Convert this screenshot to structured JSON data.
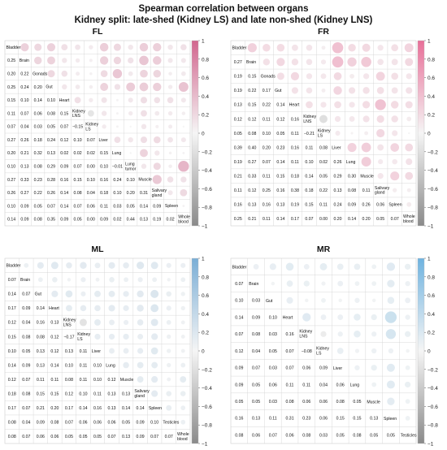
{
  "figure": {
    "title": "Spearman correlation between organs",
    "subtitle": "Kidney split: late-shed (Kidney LS) and late non-shed (Kidney LNS)"
  },
  "colorbar_ticks": [
    "1",
    "0.8",
    "0.6",
    "0.4",
    "0.2",
    "0",
    "−0.2",
    "−0.4",
    "−0.6",
    "−0.8",
    "−1"
  ],
  "colors": {
    "fl_high": "#d2668e",
    "fr_high": "#e86f98",
    "ml_high": "#7aaed6",
    "mr_high": "#6fb3e0",
    "mid": "#f5f5f5",
    "low": "#8a8a8a",
    "grid": "#cfcfcf"
  },
  "chart_data": [
    {
      "type": "heatmap",
      "title": "FL",
      "labels": [
        "Bladder",
        "Brain",
        "Gonads",
        "Gut",
        "Heart",
        "Kidney LNS",
        "Kidney LS",
        "Liver",
        "Lung",
        "Lung tumor",
        "Muscle",
        "Salivary gland",
        "Spleen",
        "Whole blood"
      ],
      "lower": [
        [],
        [
          0.25
        ],
        [
          0.2,
          0.22
        ],
        [
          0.25,
          0.24,
          0.2
        ],
        [
          0.15,
          0.1,
          0.14,
          0.1
        ],
        [
          0.11,
          0.07,
          0.06,
          0.08,
          0.15
        ],
        [
          0.07,
          0.04,
          0.03,
          0.05,
          0.07,
          -0.15
        ],
        [
          0.27,
          0.26,
          0.18,
          0.24,
          0.12,
          0.1,
          0.07
        ],
        [
          0.2,
          0.21,
          0.32,
          0.13,
          0.02,
          0.02,
          0.02,
          0.15
        ],
        [
          0.1,
          0.13,
          0.08,
          0.29,
          0.09,
          0.07,
          0.0,
          0.1,
          -0.01
        ],
        [
          0.27,
          0.33,
          0.23,
          0.28,
          0.16,
          0.15,
          0.1,
          0.16,
          0.24,
          0.1
        ],
        [
          0.26,
          0.27,
          0.22,
          0.26,
          0.14,
          0.08,
          0.04,
          0.18,
          0.1,
          0.2,
          0.31
        ],
        [
          0.1,
          0.09,
          0.05,
          0.07,
          0.14,
          0.07,
          0.06,
          0.11,
          0.03,
          0.05,
          0.14,
          0.09
        ],
        [
          0.14,
          0.09,
          0.08,
          0.35,
          0.09,
          0.05,
          0.0,
          0.09,
          0.02,
          0.44,
          0.13,
          0.19,
          0.02
        ]
      ],
      "colorbar_range": [
        -1,
        1
      ]
    },
    {
      "type": "heatmap",
      "title": "FR",
      "labels": [
        "Bladder",
        "Brain",
        "Gonads",
        "Gut",
        "Heart",
        "Kidney LNS",
        "Kidney LS",
        "Liver",
        "Lung",
        "Muscle",
        "Salivary gland",
        "Spleen",
        "Whole blood"
      ],
      "lower": [
        [],
        [
          0.27
        ],
        [
          0.19,
          0.15
        ],
        [
          0.19,
          0.22,
          0.17
        ],
        [
          0.13,
          0.15,
          0.22,
          0.14
        ],
        [
          0.12,
          0.12,
          0.11,
          0.12,
          0.16
        ],
        [
          0.05,
          0.08,
          0.1,
          0.05,
          0.11,
          -0.21
        ],
        [
          0.39,
          0.4,
          0.2,
          0.23,
          0.16,
          0.11,
          0.08
        ],
        [
          0.19,
          0.27,
          0.07,
          0.14,
          0.11,
          0.1,
          0.02,
          0.26
        ],
        [
          0.21,
          0.33,
          0.11,
          0.15,
          0.18,
          0.14,
          0.05,
          0.29,
          0.3
        ],
        [
          0.11,
          0.12,
          0.25,
          0.16,
          0.38,
          0.18,
          0.22,
          0.13,
          0.08,
          0.11
        ],
        [
          0.16,
          0.13,
          0.16,
          0.13,
          0.19,
          0.15,
          0.11,
          0.24,
          0.09,
          0.26,
          0.06
        ],
        [
          0.25,
          0.21,
          0.11,
          0.14,
          0.17,
          0.07,
          0.0,
          0.2,
          0.14,
          0.2,
          0.05,
          0.07
        ]
      ],
      "colorbar_range": [
        -1,
        1
      ]
    },
    {
      "type": "heatmap",
      "title": "ML",
      "labels": [
        "Bladder",
        "Brain",
        "Gut",
        "Heart",
        "Kidney LNS",
        "Kidney LS",
        "Liver",
        "Lung",
        "Muscle",
        "Salivary gland",
        "Spleen",
        "Testicles",
        "Whole blood"
      ],
      "lower": [
        [],
        [
          0.07
        ],
        [
          0.14,
          0.07
        ],
        [
          0.17,
          0.09,
          0.14
        ],
        [
          0.12,
          0.04,
          0.16,
          0.13
        ],
        [
          0.15,
          0.08,
          0.08,
          0.12,
          -0.17
        ],
        [
          0.1,
          0.05,
          0.13,
          0.12,
          0.13,
          0.11
        ],
        [
          0.14,
          0.09,
          0.13,
          0.14,
          0.1,
          0.11,
          0.1
        ],
        [
          0.12,
          0.07,
          0.11,
          0.11,
          0.08,
          0.11,
          0.1,
          0.12
        ],
        [
          0.18,
          0.08,
          0.15,
          0.15,
          0.12,
          0.1,
          0.11,
          0.13,
          0.13
        ],
        [
          0.17,
          0.07,
          0.21,
          0.2,
          0.17,
          0.14,
          0.16,
          0.13,
          0.14,
          0.14
        ],
        [
          0.08,
          0.04,
          0.09,
          0.08,
          0.07,
          0.06,
          0.06,
          0.06,
          0.05,
          0.09,
          0.1
        ],
        [
          0.08,
          0.07,
          0.06,
          0.06,
          0.05,
          0.05,
          0.05,
          0.07,
          0.13,
          0.09,
          0.07,
          0.07
        ]
      ],
      "colorbar_range": [
        -1,
        1
      ]
    },
    {
      "type": "heatmap",
      "title": "MR",
      "labels": [
        "Bladder",
        "Brain",
        "Gut",
        "Heart",
        "Kidney LNS",
        "Kidney LS",
        "Liver",
        "Lung",
        "Muscle",
        "Spleen",
        "Testicles"
      ],
      "lower": [
        [],
        [
          0.07
        ],
        [
          0.1,
          0.03
        ],
        [
          0.14,
          0.09,
          0.1
        ],
        [
          0.07,
          0.08,
          0.03,
          0.16
        ],
        [
          0.12,
          0.04,
          0.05,
          0.07,
          -0.08
        ],
        [
          0.09,
          0.07,
          0.03,
          0.07,
          0.06,
          0.09
        ],
        [
          0.09,
          0.05,
          0.06,
          0.11,
          0.11,
          0.04,
          0.06
        ],
        [
          0.05,
          0.05,
          0.03,
          0.08,
          0.06,
          0.06,
          0.08,
          0.05
        ],
        [
          0.16,
          0.13,
          0.11,
          0.31,
          0.23,
          0.06,
          0.15,
          0.15,
          0.13
        ],
        [
          0.08,
          0.06,
          0.07,
          0.06,
          0.08,
          0.03,
          0.05,
          0.08,
          0.05,
          0.05
        ]
      ],
      "upper_note": "",
      "colorbar_range": [
        -1,
        1
      ]
    }
  ]
}
